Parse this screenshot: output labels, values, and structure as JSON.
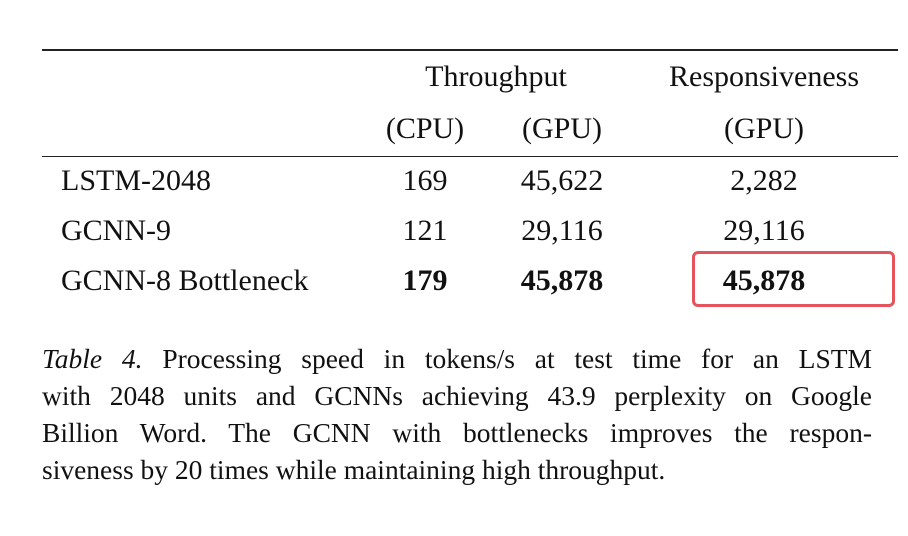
{
  "table": {
    "header": {
      "throughput": "Throughput",
      "responsiveness": "Responsiveness",
      "cpu": "(CPU)",
      "gpu": "(GPU)",
      "gpu_resp": "(GPU)"
    },
    "rows": [
      {
        "model": "LSTM-2048",
        "throughput_cpu": "169",
        "throughput_gpu": "45,622",
        "responsiveness_gpu": "2,282"
      },
      {
        "model": "GCNN-9",
        "throughput_cpu": "121",
        "throughput_gpu": "29,116",
        "responsiveness_gpu": "29,116"
      },
      {
        "model": "GCNN-8 Bottleneck",
        "throughput_cpu": "179",
        "throughput_gpu": "45,878",
        "responsiveness_gpu": "45,878"
      }
    ]
  },
  "caption": {
    "label": "Table 4.",
    "lines": [
      "Processing speed in tokens/s at test time for an LSTM",
      "with 2048 units and GCNNs achieving 43.9 perplexity on Google",
      "Billion Word. The GCNN with bottlenecks improves the respon-",
      "siveness by 20 times while maintaining high throughput."
    ]
  },
  "highlight_color": "#e5535d"
}
